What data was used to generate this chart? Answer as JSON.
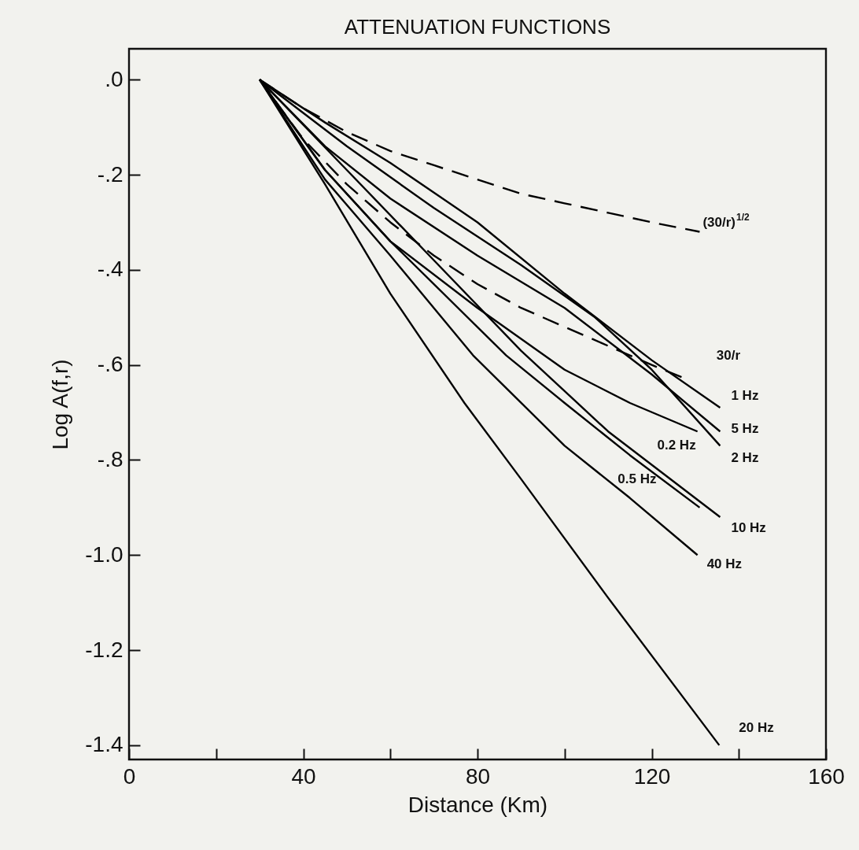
{
  "chart_data": {
    "type": "line",
    "title": "ATTENUATION FUNCTIONS",
    "xlabel": "Distance (Km)",
    "ylabel": "Log A(f,r)",
    "xlim": [
      0,
      160
    ],
    "xticks": [
      0,
      {
        "value": 20,
        "label": null
      },
      40,
      {
        "value": 60,
        "label": null
      },
      80,
      {
        "value": 100,
        "label": null
      },
      120,
      {
        "value": 140,
        "label": null
      },
      160
    ],
    "ylim": [
      -1.43,
      0.065
    ],
    "yticks": [
      {
        "value": 0,
        "label": ".0"
      },
      {
        "value": -0.2,
        "label": "-.2"
      },
      {
        "value": -0.4,
        "label": "-.4"
      },
      {
        "value": -0.6,
        "label": "-.6"
      },
      {
        "value": -0.8,
        "label": "-.8"
      },
      {
        "value": -1.0,
        "label": "-1.0"
      },
      {
        "value": -1.2,
        "label": "-1.2"
      },
      {
        "value": -1.4,
        "label": "-1.4"
      }
    ],
    "grid": false,
    "marker": "none",
    "series": [
      {
        "name": "(30/r)$^{1/2}$",
        "color": "#000000",
        "line_style": "dashed",
        "x": [
          30,
          40,
          50,
          60,
          70,
          80,
          90,
          100,
          110,
          120,
          131
        ],
        "values": [
          0,
          -0.06,
          -0.11,
          -0.15,
          -0.18,
          -0.21,
          -0.24,
          -0.26,
          -0.28,
          -0.3,
          -0.32
        ]
      },
      {
        "name": "30/r",
        "color": "#000000",
        "line_style": "dashed",
        "x": [
          30,
          40,
          50,
          60,
          70,
          80,
          90,
          100,
          110,
          120,
          128
        ],
        "values": [
          0,
          -0.125,
          -0.22,
          -0.3,
          -0.37,
          -0.43,
          -0.48,
          -0.52,
          -0.56,
          -0.6,
          -0.63
        ]
      },
      {
        "name": "1 Hz",
        "color": "#000000",
        "line_style": "solid",
        "x": [
          30,
          45,
          60,
          80,
          100,
          120,
          135.7
        ],
        "values": [
          0,
          -0.09,
          -0.175,
          -0.3,
          -0.45,
          -0.59,
          -0.69
        ]
      },
      {
        "name": "5 Hz",
        "color": "#000000",
        "line_style": "solid",
        "x": [
          30,
          45,
          60,
          80,
          100,
          120,
          135.7
        ],
        "values": [
          0,
          -0.14,
          -0.25,
          -0.37,
          -0.48,
          -0.62,
          -0.74
        ]
      },
      {
        "name": "2 Hz",
        "color": "#000000",
        "line_style": "solid",
        "x": [
          30,
          50,
          70,
          90,
          107,
          120,
          135.7
        ],
        "values": [
          0,
          -0.14,
          -0.27,
          -0.39,
          -0.5,
          -0.61,
          -0.77
        ]
      },
      {
        "name": "0.2 Hz",
        "color": "#000000",
        "line_style": "solid",
        "x": [
          30,
          45,
          60,
          80,
          100,
          115,
          130.5
        ],
        "values": [
          0,
          -0.19,
          -0.34,
          -0.48,
          -0.61,
          -0.68,
          -0.74
        ]
      },
      {
        "name": "10 Hz",
        "color": "#000000",
        "line_style": "solid",
        "x": [
          30,
          50,
          70,
          90,
          110,
          135.7
        ],
        "values": [
          0,
          -0.19,
          -0.38,
          -0.57,
          -0.74,
          -0.92
        ]
      },
      {
        "name": "0.5 Hz",
        "color": "#000000",
        "line_style": "solid",
        "x": [
          30,
          45,
          60,
          86.6,
          100,
          115,
          131
        ],
        "values": [
          0,
          -0.19,
          -0.34,
          -0.58,
          -0.68,
          -0.79,
          -0.9
        ]
      },
      {
        "name": "40 Hz",
        "color": "#000000",
        "line_style": "solid",
        "x": [
          30,
          45,
          60,
          79,
          100,
          115,
          130.5
        ],
        "values": [
          0,
          -0.21,
          -0.37,
          -0.58,
          -0.77,
          -0.88,
          -1.0
        ]
      },
      {
        "name": "20 Hz",
        "color": "#000000",
        "line_style": "solid",
        "x": [
          30,
          45,
          60,
          77,
          90,
          110,
          135.5
        ],
        "values": [
          0,
          -0.22,
          -0.45,
          -0.68,
          -0.84,
          -1.09,
          -1.4
        ]
      }
    ]
  }
}
